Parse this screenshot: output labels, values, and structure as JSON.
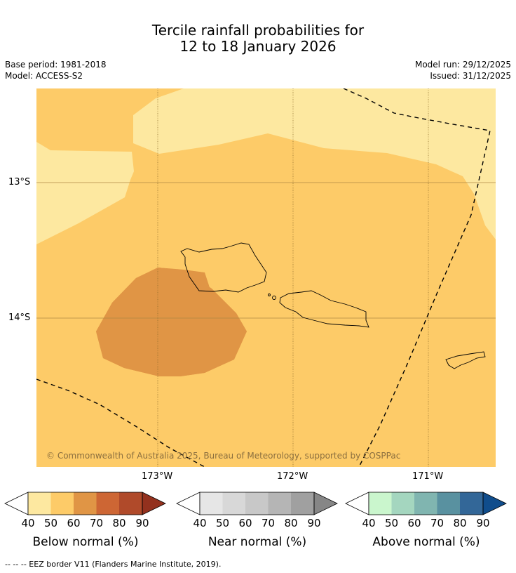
{
  "title": {
    "line1": "Tercile rainfall probabilities for",
    "line2": "12 to 18 January 2026"
  },
  "meta": {
    "base_period": "Base period: 1981-2018",
    "model": "Model: ACCESS-S2",
    "model_run": "Model run: 29/12/2025",
    "issued": "Issued: 31/12/2025"
  },
  "map": {
    "copyright": "© Commonwealth of Australia 2025, Bureau of Meteorology, supported by COSPPac",
    "lat_labels": [
      "13°S",
      "14°S"
    ],
    "lon_labels": [
      "173°W",
      "172°W",
      "171°W"
    ]
  },
  "legend_colors": {
    "below": [
      "#fde8a0",
      "#fdcb68",
      "#e09545",
      "#cd6634",
      "#b04a2a",
      "#93311e"
    ],
    "near": [
      "#e6e6e6",
      "#d8d8d8",
      "#c8c8c8",
      "#b5b5b5",
      "#a0a0a0",
      "#868686"
    ],
    "above": [
      "#caf6cd",
      "#a4d6bf",
      "#80b5b0",
      "#5991a0",
      "#336798",
      "#104d8c"
    ]
  },
  "colorbars": [
    {
      "label": "Below normal (%)",
      "ticks": [
        "40",
        "50",
        "60",
        "70",
        "80",
        "90"
      ]
    },
    {
      "label": "Near normal (%)",
      "ticks": [
        "40",
        "50",
        "60",
        "70",
        "80",
        "90"
      ]
    },
    {
      "label": "Above normal (%)",
      "ticks": [
        "40",
        "50",
        "60",
        "70",
        "80",
        "90"
      ]
    }
  ],
  "footer": "--  --  -- EEZ border V11 (Flanders Marine Institute, 2019)."
}
